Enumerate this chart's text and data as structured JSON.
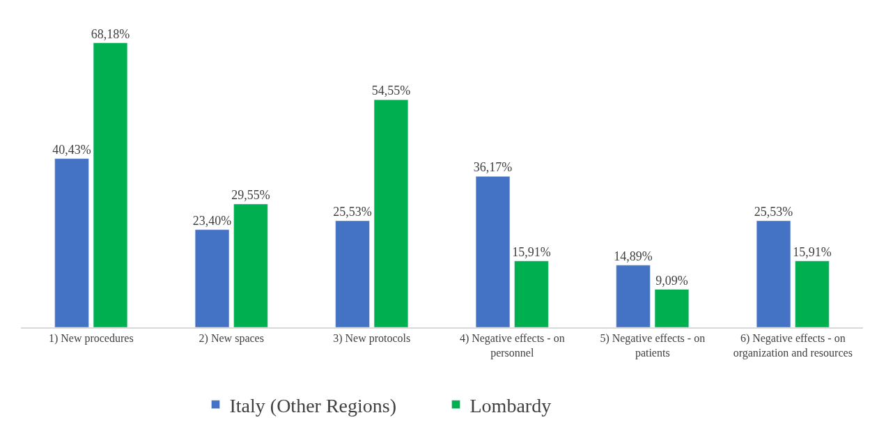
{
  "chart_data": {
    "type": "bar",
    "categories": [
      "1) New procedures",
      "2) New spaces",
      "3) New protocols",
      "4) Negative effects - on personnel",
      "5) Negative effects - on patients",
      "6) Negative effects - on organization and resources"
    ],
    "series": [
      {
        "name": "Italy (Other Regions)",
        "color": "#4472c4",
        "values": [
          40.43,
          23.4,
          25.53,
          36.17,
          14.89,
          25.53
        ],
        "value_labels": [
          "40,43%",
          "23,40%",
          "25,53%",
          "36,17%",
          "14,89%",
          "25,53%"
        ]
      },
      {
        "name": "Lombardy",
        "color": "#00b050",
        "values": [
          68.18,
          29.55,
          54.55,
          15.91,
          9.09,
          15.91
        ],
        "value_labels": [
          "68,18%",
          "29,55%",
          "54,55%",
          "15,91%",
          "9,09%",
          "15,91%"
        ]
      }
    ],
    "legend": "bottom",
    "tick_labels": "x"
  }
}
